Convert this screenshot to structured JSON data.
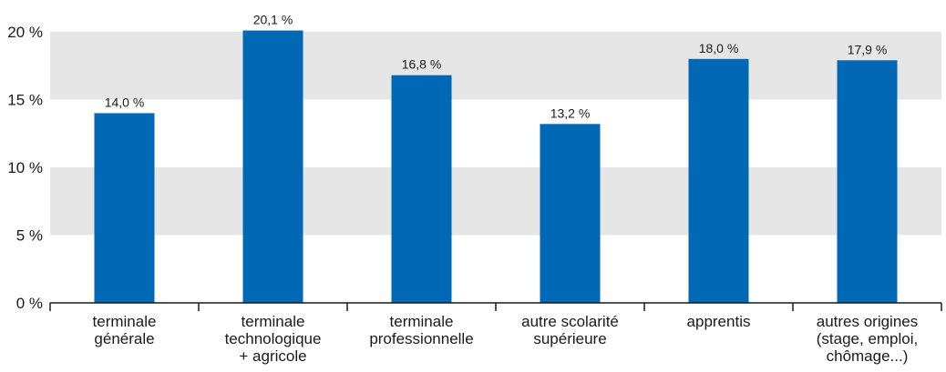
{
  "chart_data": {
    "type": "bar",
    "categories": [
      [
        "terminale",
        "générale"
      ],
      [
        "terminale",
        "technologique",
        "+ agricole"
      ],
      [
        "terminale",
        "professionnelle"
      ],
      [
        "autre scolarité",
        "supérieure"
      ],
      [
        "apprentis"
      ],
      [
        "autres origines",
        "(stage, emploi,",
        "chômage...)"
      ]
    ],
    "values": [
      14.0,
      20.1,
      16.8,
      13.2,
      18.0,
      17.9
    ],
    "data_labels": [
      "14,0 %",
      "20,1 %",
      "16,8 %",
      "13,2 %",
      "18,0 %",
      "17,9 %"
    ],
    "y_ticks": [
      {
        "value": 0,
        "label": "0 %"
      },
      {
        "value": 5,
        "label": "5 %"
      },
      {
        "value": 10,
        "label": "10 %"
      },
      {
        "value": 15,
        "label": "15 %"
      },
      {
        "value": 20,
        "label": "20 %"
      }
    ],
    "ylim": [
      0,
      20
    ],
    "grid": "alternating horizontal bands",
    "colors": {
      "bar": "#0068b4",
      "band": "#e6e6e6",
      "axis": "#1a1a1a"
    }
  }
}
